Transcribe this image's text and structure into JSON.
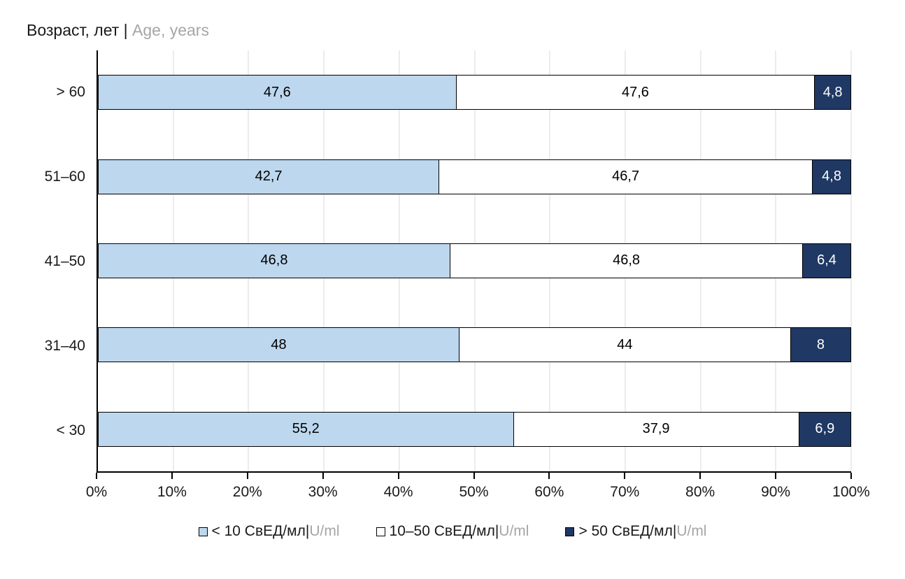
{
  "chart_data": {
    "type": "bar",
    "orientation": "horizontal",
    "stacked_percent": true,
    "title": {
      "primary": "Возраст, лет ",
      "separator": "| ",
      "secondary": "Age, years"
    },
    "categories": [
      "> 60",
      "51–60",
      "41–50",
      "31–40",
      "< 30"
    ],
    "series": [
      {
        "name": "< 10 СвЕД/мл | U/ml",
        "values": [
          47.6,
          42.7,
          46.8,
          48,
          55.2
        ],
        "color": "#BDD7EE",
        "label_color": "#000000"
      },
      {
        "name": "10–50 СвЕД/мл | U/ml",
        "values": [
          47.6,
          46.7,
          46.8,
          44,
          37.9
        ],
        "color": "#FFFFFF",
        "label_color": "#000000"
      },
      {
        "name": "> 50 СвЕД/мл | U/ml",
        "values": [
          4.8,
          4.8,
          6.4,
          8,
          6.9
        ],
        "color": "#1F3864",
        "label_color": "#FFFFFF"
      }
    ],
    "data_labels": [
      [
        "47,6",
        "47,6",
        "4,8"
      ],
      [
        "42,7",
        "46,7",
        "4,8"
      ],
      [
        "46,8",
        "46,8",
        "6,4"
      ],
      [
        "48",
        "44",
        "8"
      ],
      [
        "55,2",
        "37,9",
        "6,9"
      ]
    ],
    "x_ticks": [
      "0%",
      "10%",
      "20%",
      "30%",
      "40%",
      "50%",
      "60%",
      "70%",
      "80%",
      "90%",
      "100%"
    ],
    "xlim": [
      0,
      100
    ],
    "grid": true,
    "legend_position": "bottom",
    "legend": [
      {
        "label": "< 10 СвЕД/мл ",
        "separator": "| ",
        "unit": "U/ml",
        "swatch": "#BDD7EE"
      },
      {
        "label": "10–50 СвЕД/мл ",
        "separator": "| ",
        "unit": "U/ml",
        "swatch": "#FFFFFF"
      },
      {
        "label": "> 50 СвЕД/мл ",
        "separator": "| ",
        "unit": "U/ml",
        "swatch": "#1F3864"
      }
    ],
    "colors": {
      "gridline": "#D9D9D9",
      "axis": "#000000",
      "muted_text": "#A6A6A6",
      "text": "#1A1A1A"
    }
  }
}
